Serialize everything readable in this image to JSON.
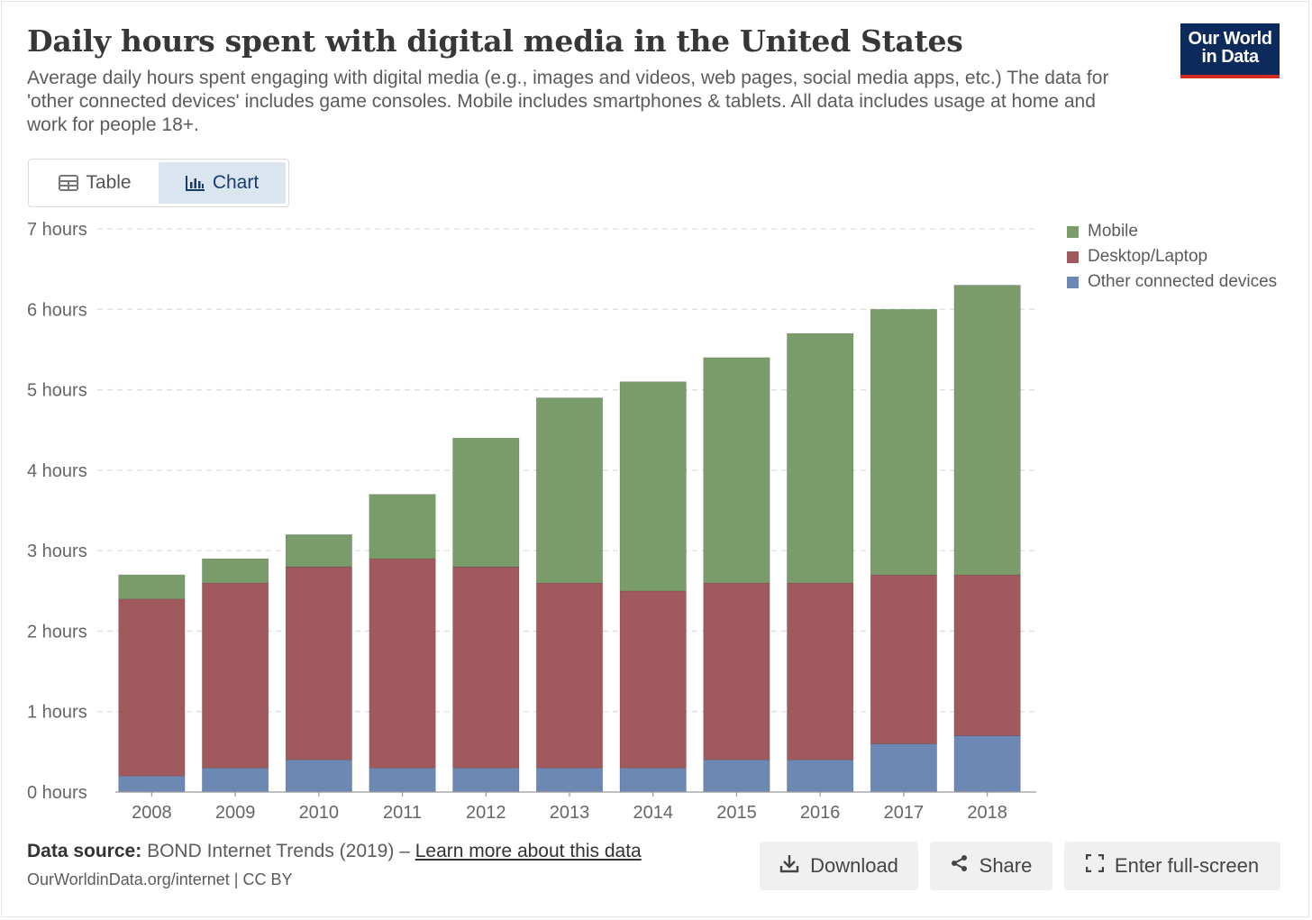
{
  "header": {
    "title": "Daily hours spent with digital media in the United States",
    "subtitle": "Average daily hours spent engaging with digital media (e.g., images and videos, web pages, social media apps, etc.) The data for 'other connected devices' includes game consoles. Mobile includes smartphones & tablets. All data includes usage at home and work for people 18+.",
    "logo_line1": "Our World",
    "logo_line2": "in Data"
  },
  "tabs": [
    {
      "label": "Table",
      "icon": "table-icon",
      "active": false
    },
    {
      "label": "Chart",
      "icon": "chart-icon",
      "active": true
    }
  ],
  "chart_data": {
    "type": "bar",
    "stacked": true,
    "title": "",
    "xlabel": "",
    "ylabel": "",
    "categories": [
      "2008",
      "2009",
      "2010",
      "2011",
      "2012",
      "2013",
      "2014",
      "2015",
      "2016",
      "2017",
      "2018"
    ],
    "series": [
      {
        "name": "Other connected devices",
        "color": "#6d88b3",
        "values": [
          0.2,
          0.3,
          0.4,
          0.3,
          0.3,
          0.3,
          0.3,
          0.4,
          0.4,
          0.6,
          0.7
        ]
      },
      {
        "name": "Desktop/Laptop",
        "color": "#a05a5e",
        "values": [
          2.2,
          2.3,
          2.4,
          2.6,
          2.5,
          2.3,
          2.2,
          2.2,
          2.2,
          2.1,
          2.0
        ]
      },
      {
        "name": "Mobile",
        "color": "#7a9c6a",
        "values": [
          0.3,
          0.3,
          0.4,
          0.8,
          1.6,
          2.3,
          2.6,
          2.8,
          3.1,
          3.3,
          3.6
        ]
      }
    ],
    "legend_order": [
      "Mobile",
      "Desktop/Laptop",
      "Other connected devices"
    ],
    "ylim": [
      0,
      7
    ],
    "yticks": [
      "0 hours",
      "1 hours",
      "2 hours",
      "3 hours",
      "4 hours",
      "5 hours",
      "6 hours",
      "7 hours"
    ],
    "grid": "horizontal dashed",
    "legend_position": "right"
  },
  "footer": {
    "source_label": "Data source:",
    "source_text": "BOND Internet Trends (2019) –",
    "learn_more": "Learn more about this data",
    "license": "OurWorldinData.org/internet | CC BY"
  },
  "buttons": {
    "download": "Download",
    "share": "Share",
    "fullscreen": "Enter full-screen"
  }
}
